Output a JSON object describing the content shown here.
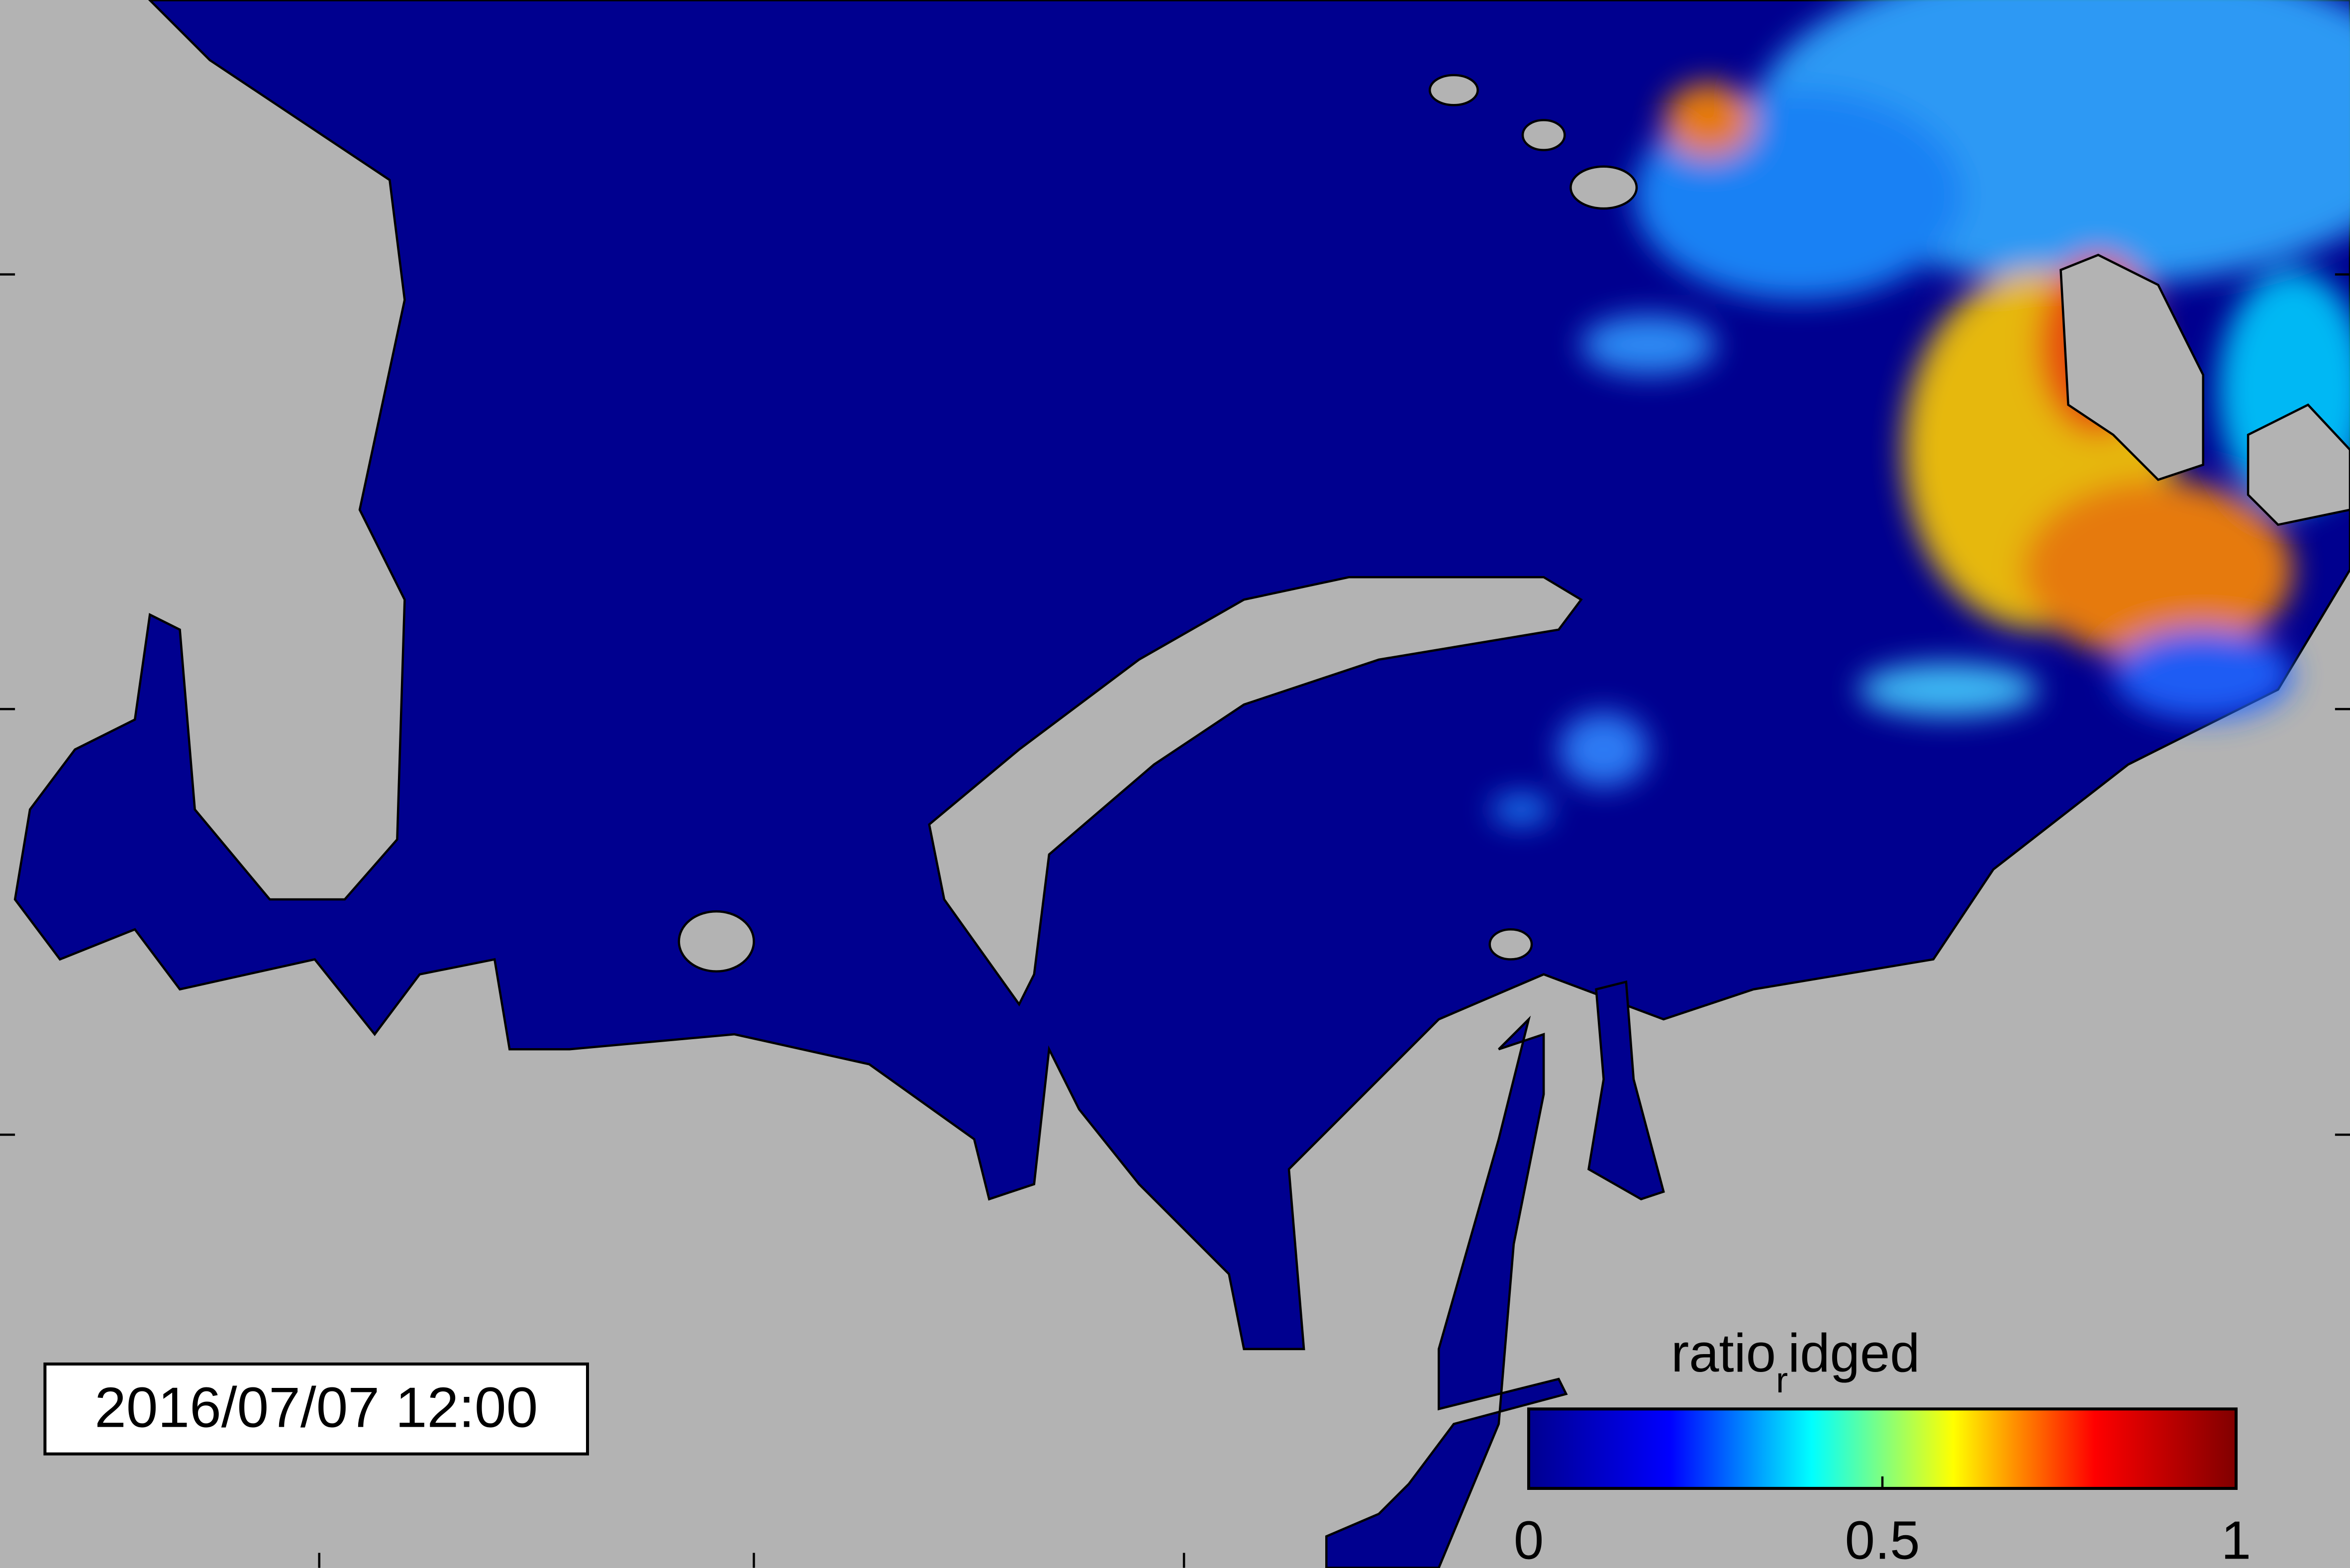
{
  "timestamp": "2016/07/07 12:00",
  "colorbar": {
    "title_parts": [
      "ratio",
      "r",
      "idged"
    ],
    "lim": [
      0,
      1
    ],
    "ticks": [
      0,
      0.5,
      1
    ],
    "colormap": [
      "#00008f",
      "#0000ff",
      "#00ffff",
      "#ffff00",
      "#ff0000",
      "#800000"
    ]
  }
}
